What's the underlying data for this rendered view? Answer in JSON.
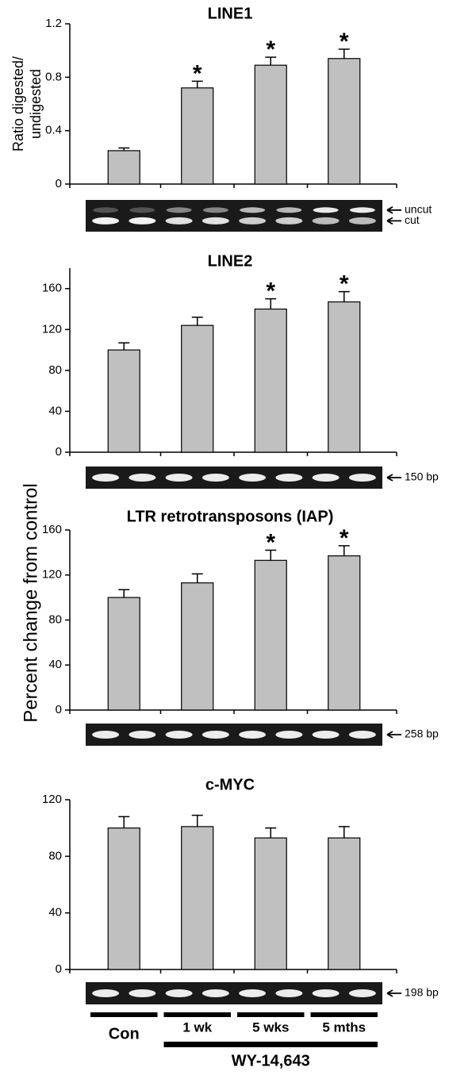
{
  "chart_data": [
    {
      "type": "bar",
      "title": "LINE1",
      "ylabel": [
        "Ratio digested/",
        "undigested"
      ],
      "values": [
        0.25,
        0.72,
        0.89,
        0.94
      ],
      "errors": [
        0.02,
        0.05,
        0.06,
        0.07
      ],
      "significance": [
        null,
        "*",
        "*",
        "*"
      ],
      "ylim": [
        0,
        1.2
      ],
      "yticks": [
        0,
        0.4,
        0.8,
        1.2
      ],
      "gel_labels": [
        "uncut",
        "cut"
      ],
      "color": "#c0c0c0"
    },
    {
      "type": "bar",
      "title": "LINE2",
      "values": [
        100,
        124,
        140,
        147
      ],
      "errors": [
        7,
        8,
        10,
        10
      ],
      "significance": [
        null,
        null,
        "*",
        "*"
      ],
      "ylim": [
        0,
        180
      ],
      "yticks": [
        0,
        40,
        80,
        120,
        160
      ],
      "gel_labels": [
        "150 bp"
      ],
      "color": "#c0c0c0"
    },
    {
      "type": "bar",
      "title": "LTR retrotransposons (IAP)",
      "values": [
        100,
        113,
        133,
        137
      ],
      "errors": [
        7,
        8,
        9,
        9
      ],
      "significance": [
        null,
        null,
        "*",
        "*"
      ],
      "ylim": [
        0,
        160
      ],
      "yticks": [
        0,
        40,
        80,
        120,
        160
      ],
      "gel_labels": [
        "258 bp"
      ],
      "color": "#c0c0c0"
    },
    {
      "type": "bar",
      "title": "c-MYC",
      "values": [
        100,
        101,
        93,
        93
      ],
      "errors": [
        8,
        8,
        7,
        8
      ],
      "significance": [
        null,
        null,
        null,
        null
      ],
      "ylim": [
        0,
        120
      ],
      "yticks": [
        0,
        40,
        80,
        120
      ],
      "gel_labels": [
        "198 bp"
      ],
      "color": "#c0c0c0"
    }
  ],
  "shared_ylabel": "Percent change from control",
  "categories": [
    "Con",
    "1 wk",
    "5 wks",
    "5 mths"
  ],
  "treatment_label": "WY-14,643"
}
